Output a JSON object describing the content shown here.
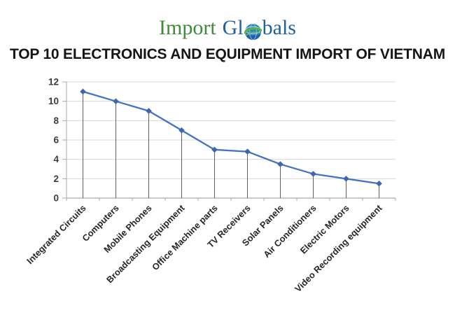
{
  "logo": {
    "import_text": "Import",
    "gl_text": "Gl",
    "bals_text": "bals",
    "green_color": "#418A3C",
    "blue_color": "#20609F",
    "globe_icon": "globe-icon"
  },
  "header": {
    "title": "TOP 10 ELECTRONICS AND EQUIPMENT IMPORT OF VIETNAM"
  },
  "chart_data": {
    "type": "line",
    "title": "TOP 10 ELECTRONICS AND EQUIPMENT IMPORT OF VIETNAM",
    "categories": [
      "Integrated Circuits",
      "Computers",
      "Mobile Phones",
      "Broadcasting Equipment",
      "Office Machine parts",
      "TV Receivers",
      "Solar Panels",
      "Air Conditioners",
      "Electric Motors",
      "Video Recording equipment"
    ],
    "values": [
      11,
      10,
      9,
      7,
      5,
      4.8,
      3.5,
      2.5,
      2,
      1.5
    ],
    "xlabel": "",
    "ylabel": "",
    "ylim": [
      0,
      12
    ],
    "yticks": [
      0,
      2,
      4,
      6,
      8,
      10,
      12
    ],
    "grid": true,
    "legend": "none",
    "marker": "diamond",
    "x_label_rotation_deg": 45,
    "colors": {
      "line": "#4472C4",
      "marker": "#3F66B0",
      "grid_line": "#D9D9D9",
      "axis_line": "#A9A9A9",
      "drop_line": "#5F5F5F",
      "y_tick_label": "#3D3D3D",
      "x_tick_label": "#262626"
    }
  }
}
